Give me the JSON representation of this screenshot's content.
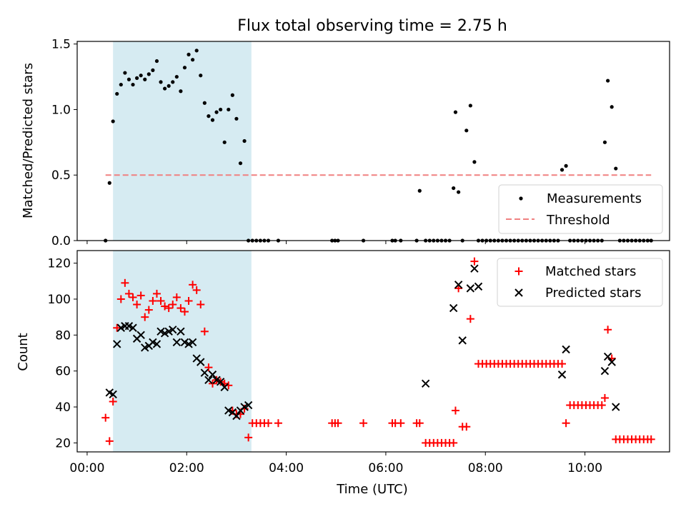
{
  "title": "Flux total observing time = 2.75 h",
  "colors": {
    "shade": "#add8e6",
    "measurement": "#000000",
    "threshold": "#f08080",
    "matched": "#ff0000",
    "predicted": "#000000"
  },
  "chart_data": [
    {
      "type": "scatter",
      "ylabel": "Matched/Predicted stars",
      "xlim": [
        -0.2,
        11.7
      ],
      "ylim": [
        0,
        1.52
      ],
      "yticks": [
        0.0,
        0.5,
        1.0,
        1.5
      ],
      "ytick_labels": [
        "0.0",
        "0.5",
        "1.0",
        "1.5"
      ],
      "shaded_span": [
        0.52,
        3.3
      ],
      "legend_position": "lower-right",
      "legend": [
        "Measurements",
        "Threshold"
      ],
      "threshold": {
        "name": "Threshold",
        "x": [
          0.37,
          11.33
        ],
        "y": 0.5
      },
      "series": [
        {
          "name": "Measurements",
          "x": [
            0.37,
            0.45,
            0.52,
            0.6,
            0.68,
            0.76,
            0.84,
            0.92,
            1.0,
            1.08,
            1.16,
            1.24,
            1.32,
            1.4,
            1.48,
            1.56,
            1.64,
            1.72,
            1.8,
            1.88,
            1.96,
            2.04,
            2.12,
            2.2,
            2.28,
            2.36,
            2.44,
            2.52,
            2.6,
            2.68,
            2.76,
            2.84,
            2.92,
            3.0,
            3.08,
            3.16,
            3.24,
            3.32,
            3.4,
            3.48,
            3.56,
            3.64,
            3.84,
            4.92,
            4.98,
            5.04,
            5.55,
            6.13,
            6.19,
            6.3,
            6.62,
            6.68,
            6.8,
            6.88,
            6.96,
            7.04,
            7.12,
            7.2,
            7.28,
            7.36,
            7.4,
            7.46,
            7.54,
            7.62,
            7.7,
            7.78,
            7.86,
            7.94,
            8.02,
            8.1,
            8.18,
            8.26,
            8.34,
            8.42,
            8.5,
            8.58,
            8.66,
            8.74,
            8.82,
            8.9,
            8.98,
            9.06,
            9.14,
            9.22,
            9.3,
            9.38,
            9.46,
            9.54,
            9.62,
            9.7,
            9.78,
            9.86,
            9.94,
            10.02,
            10.1,
            10.18,
            10.26,
            10.34,
            10.4,
            10.46,
            10.54,
            10.62,
            10.7,
            10.78,
            10.86,
            10.94,
            11.02,
            11.1,
            11.18,
            11.26,
            11.33
          ],
          "y": [
            0.0,
            0.44,
            0.91,
            1.12,
            1.19,
            1.28,
            1.23,
            1.19,
            1.24,
            1.26,
            1.23,
            1.27,
            1.3,
            1.37,
            1.21,
            1.16,
            1.18,
            1.21,
            1.25,
            1.14,
            1.32,
            1.42,
            1.38,
            1.45,
            1.26,
            1.05,
            0.95,
            0.92,
            0.98,
            1.0,
            0.75,
            1.0,
            1.11,
            0.93,
            0.59,
            0.76,
            0.0,
            0.0,
            0.0,
            0.0,
            0.0,
            0.0,
            0.0,
            0.0,
            0.0,
            0.0,
            0.0,
            0.0,
            0.0,
            0.0,
            0.0,
            0.38,
            0.0,
            0.0,
            0.0,
            0.0,
            0.0,
            0.0,
            0.0,
            0.4,
            0.98,
            0.37,
            0.0,
            0.84,
            1.03,
            0.6,
            0.0,
            0.0,
            0.0,
            0.0,
            0.0,
            0.0,
            0.0,
            0.0,
            0.0,
            0.0,
            0.0,
            0.0,
            0.0,
            0.0,
            0.0,
            0.0,
            0.0,
            0.0,
            0.0,
            0.0,
            0.0,
            0.54,
            0.57,
            0.0,
            0.0,
            0.0,
            0.0,
            0.0,
            0.0,
            0.0,
            0.0,
            0.0,
            0.75,
            1.22,
            1.02,
            0.55,
            0.0,
            0.0,
            0.0,
            0.0,
            0.0,
            0.0,
            0.0,
            0.0,
            0.0
          ]
        }
      ]
    },
    {
      "type": "scatter",
      "xlabel": "Time (UTC)",
      "ylabel": "Count",
      "xlim": [
        -0.2,
        11.7
      ],
      "ylim": [
        15,
        127
      ],
      "xticks": [
        0,
        2,
        4,
        6,
        8,
        10
      ],
      "xtick_labels": [
        "00:00",
        "02:00",
        "04:00",
        "06:00",
        "08:00",
        "10:00"
      ],
      "yticks": [
        20,
        40,
        60,
        80,
        100,
        120
      ],
      "ytick_labels": [
        "20",
        "40",
        "60",
        "80",
        "100",
        "120"
      ],
      "shaded_span": [
        0.52,
        3.3
      ],
      "legend_position": "upper-right",
      "legend": [
        "Matched stars",
        "Predicted stars"
      ],
      "series": [
        {
          "name": "Matched stars",
          "x": [
            0.37,
            0.45,
            0.52,
            0.6,
            0.68,
            0.76,
            0.84,
            0.92,
            1.0,
            1.08,
            1.16,
            1.24,
            1.32,
            1.4,
            1.48,
            1.56,
            1.64,
            1.72,
            1.8,
            1.88,
            1.96,
            2.04,
            2.12,
            2.2,
            2.28,
            2.36,
            2.44,
            2.52,
            2.6,
            2.68,
            2.76,
            2.84,
            2.92,
            3.0,
            3.08,
            3.16,
            3.24,
            3.32,
            3.4,
            3.48,
            3.56,
            3.64,
            3.84,
            4.92,
            4.98,
            5.04,
            5.55,
            6.13,
            6.19,
            6.3,
            6.62,
            6.68,
            6.8,
            6.88,
            6.96,
            7.04,
            7.12,
            7.2,
            7.28,
            7.36,
            7.4,
            7.46,
            7.54,
            7.62,
            7.7,
            7.78,
            7.86,
            7.94,
            8.02,
            8.1,
            8.18,
            8.26,
            8.34,
            8.42,
            8.5,
            8.58,
            8.66,
            8.74,
            8.82,
            8.9,
            8.98,
            9.06,
            9.14,
            9.22,
            9.3,
            9.38,
            9.46,
            9.54,
            9.62,
            9.7,
            9.78,
            9.86,
            9.94,
            10.02,
            10.1,
            10.18,
            10.26,
            10.34,
            10.4,
            10.46,
            10.54,
            10.62,
            10.7,
            10.78,
            10.86,
            10.94,
            11.02,
            11.1,
            11.18,
            11.26,
            11.33
          ],
          "y": [
            34,
            21,
            43,
            84,
            100,
            109,
            103,
            101,
            97,
            102,
            90,
            94,
            99,
            103,
            99,
            96,
            95,
            97,
            101,
            95,
            93,
            99,
            108,
            105,
            97,
            82,
            62,
            53,
            55,
            54,
            53,
            52,
            38,
            36,
            36,
            39,
            23,
            31,
            31,
            31,
            31,
            31,
            31,
            31,
            31,
            31,
            31,
            31,
            31,
            31,
            31,
            31,
            20,
            20,
            20,
            20,
            20,
            20,
            20,
            20,
            38,
            106,
            29,
            29,
            89,
            121,
            64,
            64,
            64,
            64,
            64,
            64,
            64,
            64,
            64,
            64,
            64,
            64,
            64,
            64,
            64,
            64,
            64,
            64,
            64,
            64,
            64,
            64,
            31,
            41,
            41,
            41,
            41,
            41,
            41,
            41,
            41,
            41,
            45,
            83,
            67,
            22,
            22,
            22,
            22,
            22,
            22,
            22,
            22,
            22,
            22
          ]
        },
        {
          "name": "Predicted stars",
          "x": [
            0.45,
            0.52,
            0.6,
            0.68,
            0.76,
            0.84,
            0.92,
            1.0,
            1.08,
            1.16,
            1.24,
            1.32,
            1.4,
            1.48,
            1.56,
            1.64,
            1.72,
            1.8,
            1.88,
            1.96,
            2.04,
            2.12,
            2.2,
            2.28,
            2.36,
            2.44,
            2.52,
            2.6,
            2.68,
            2.76,
            2.84,
            2.92,
            3.0,
            3.08,
            3.16,
            3.24,
            6.8,
            7.36,
            7.46,
            7.54,
            7.7,
            7.78,
            7.86,
            9.54,
            9.62,
            10.4,
            10.46,
            10.54,
            10.62
          ],
          "y": [
            48,
            47,
            75,
            84,
            85,
            85,
            84,
            78,
            80,
            73,
            74,
            76,
            75,
            82,
            81,
            82,
            83,
            76,
            82,
            76,
            75,
            76,
            67,
            65,
            59,
            55,
            58,
            55,
            54,
            51,
            38,
            37,
            35,
            38,
            40,
            41,
            53,
            95,
            108,
            77,
            106,
            117,
            107,
            58,
            72,
            60,
            68,
            65,
            40
          ]
        }
      ]
    }
  ]
}
